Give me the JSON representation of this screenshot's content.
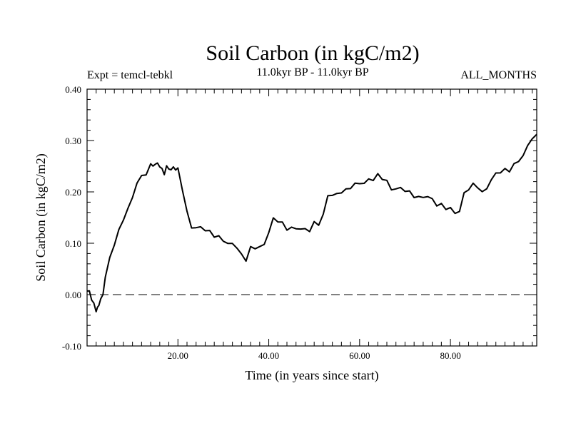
{
  "chart_data": {
    "type": "line",
    "title": "Soil Carbon (in kgC/m2)",
    "subtitle": "11.0kyr BP - 11.0kyr BP",
    "experiment_label": "Expt = temcl-tebkl",
    "period_label": "ALL_MONTHS",
    "xlabel": "Time (in years since start)",
    "ylabel": "Soil Carbon (in kgC/m2)",
    "xlim": [
      0,
      99
    ],
    "ylim": [
      -0.1,
      0.4
    ],
    "xticks": [
      20,
      40,
      60,
      80
    ],
    "xtick_labels": [
      "20.00",
      "40.00",
      "60.00",
      "80.00"
    ],
    "yticks": [
      -0.1,
      0.0,
      0.1,
      0.2,
      0.3,
      0.4
    ],
    "ytick_labels": [
      "-0.10",
      "0.00",
      "0.10",
      "0.20",
      "0.30",
      "0.40"
    ],
    "reference_line": {
      "y": 0.0,
      "style": "dashed"
    },
    "series": [
      {
        "name": "Soil Carbon",
        "color": "#000000",
        "x": [
          0,
          0.5,
          1,
          1.5,
          2,
          2.3,
          2.6,
          3,
          3.5,
          4,
          5,
          6,
          7,
          8,
          9,
          10,
          11,
          12,
          13,
          14,
          14.5,
          15,
          15.5,
          16,
          16.5,
          17,
          17.5,
          18,
          18.5,
          19,
          19.5,
          20,
          21,
          22,
          23,
          24,
          25,
          26,
          27,
          28,
          29,
          30,
          31,
          32,
          33,
          34,
          35,
          36,
          37,
          38,
          39,
          40,
          41,
          42,
          43,
          44,
          45,
          46,
          47,
          48,
          49,
          50,
          51,
          52,
          53,
          54,
          55,
          56,
          57,
          58,
          59,
          60,
          61,
          62,
          63,
          64,
          65,
          66,
          67,
          68,
          69,
          70,
          71,
          72,
          73,
          74,
          75,
          76,
          77,
          78,
          79,
          80,
          81,
          82,
          83,
          84,
          85,
          86,
          87,
          88,
          89,
          90,
          91,
          92,
          93,
          94,
          95,
          96,
          97,
          98,
          99
        ],
        "y": [
          0.007,
          0.005,
          -0.005,
          -0.018,
          -0.028,
          -0.03,
          -0.022,
          -0.01,
          0.0,
          0.04,
          0.07,
          0.1,
          0.12,
          0.145,
          0.168,
          0.19,
          0.223,
          0.228,
          0.235,
          0.248,
          0.252,
          0.255,
          0.258,
          0.253,
          0.24,
          0.235,
          0.245,
          0.248,
          0.245,
          0.25,
          0.245,
          0.24,
          0.205,
          0.158,
          0.135,
          0.132,
          0.132,
          0.125,
          0.118,
          0.115,
          0.112,
          0.11,
          0.1,
          0.098,
          0.09,
          0.073,
          0.07,
          0.092,
          0.095,
          0.092,
          0.095,
          0.12,
          0.145,
          0.148,
          0.14,
          0.13,
          0.128,
          0.125,
          0.128,
          0.126,
          0.13,
          0.14,
          0.138,
          0.152,
          0.19,
          0.195,
          0.196,
          0.205,
          0.202,
          0.208,
          0.212,
          0.215,
          0.22,
          0.225,
          0.228,
          0.23,
          0.225,
          0.218,
          0.205,
          0.21,
          0.208,
          0.205,
          0.195,
          0.19,
          0.188,
          0.192,
          0.195,
          0.185,
          0.175,
          0.17,
          0.168,
          0.168,
          0.162,
          0.165,
          0.195,
          0.205,
          0.21,
          0.212,
          0.2,
          0.21,
          0.225,
          0.232,
          0.238,
          0.24,
          0.245,
          0.255,
          0.262,
          0.27,
          0.285,
          0.305,
          0.312
        ]
      }
    ]
  }
}
